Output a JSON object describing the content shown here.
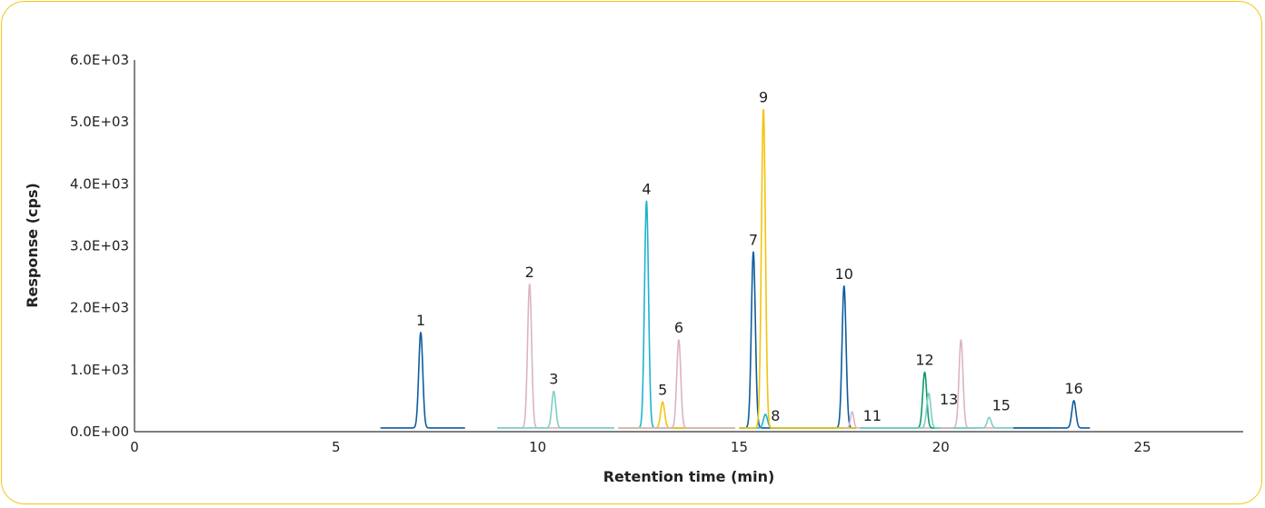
{
  "chart_data": {
    "type": "line",
    "xlabel": "Retention time (min)",
    "ylabel": "Response (cps)",
    "xlim": [
      0,
      27.5
    ],
    "ylim": [
      0,
      6000
    ],
    "x_ticks": [
      "0",
      "5",
      "10",
      "15",
      "20",
      "25"
    ],
    "x_tick_values": [
      0,
      5,
      10,
      15,
      20,
      25
    ],
    "y_ticks": [
      "0.0E+00",
      "1.0E+03",
      "2.0E+03",
      "3.0E+03",
      "4.0E+03",
      "5.0E+03",
      "6.0E+03"
    ],
    "y_tick_values": [
      0,
      1000,
      2000,
      3000,
      4000,
      5000,
      6000
    ],
    "grid": false,
    "colors": {
      "blue": "#0d5c9e",
      "pink": "#dcb3c4",
      "teal": "#7ccfc4",
      "cyan": "#1fb3cc",
      "yellow": "#f2c40c",
      "green": "#0f9a6e"
    },
    "series": [
      {
        "color": "blue",
        "range": [
          6.1,
          8.2
        ],
        "baseline": 60,
        "peaks": [
          {
            "label": "1",
            "x": 7.1,
            "y": 1600,
            "w": 0.05
          }
        ]
      },
      {
        "color": "pink",
        "range": [
          9.0,
          11.9
        ],
        "baseline": 60,
        "peaks": [
          {
            "label": "2",
            "x": 9.8,
            "y": 2380,
            "w": 0.05
          }
        ]
      },
      {
        "color": "teal",
        "range": [
          9.0,
          11.9
        ],
        "baseline": 60,
        "peaks": [
          {
            "label": "3",
            "x": 10.4,
            "y": 650,
            "w": 0.05
          }
        ]
      },
      {
        "color": "cyan",
        "range": [
          12.0,
          14.9
        ],
        "baseline": 60,
        "peaks": [
          {
            "label": "4",
            "x": 12.7,
            "y": 3720,
            "w": 0.05
          }
        ]
      },
      {
        "color": "yellow",
        "range": [
          12.0,
          14.9
        ],
        "baseline": 60,
        "peaks": [
          {
            "label": "5",
            "x": 13.1,
            "y": 480,
            "w": 0.05
          }
        ]
      },
      {
        "color": "pink",
        "range": [
          12.0,
          14.9
        ],
        "baseline": 60,
        "peaks": [
          {
            "label": "6",
            "x": 13.5,
            "y": 1480,
            "w": 0.05
          }
        ]
      },
      {
        "color": "blue",
        "range": [
          15.0,
          17.9
        ],
        "baseline": 60,
        "peaks": [
          {
            "label": "7",
            "x": 15.35,
            "y": 2900,
            "w": 0.05
          },
          {
            "label": "10",
            "x": 17.6,
            "y": 2350,
            "w": 0.05
          }
        ]
      },
      {
        "color": "cyan",
        "range": [
          15.0,
          17.9
        ],
        "baseline": 60,
        "peaks": [
          {
            "label": "8",
            "x": 15.65,
            "y": 280,
            "w": 0.05
          }
        ]
      },
      {
        "color": "yellow",
        "range": [
          15.0,
          17.9
        ],
        "baseline": 60,
        "peaks": [
          {
            "label": "9",
            "x": 15.6,
            "y": 5200,
            "w": 0.05
          }
        ]
      },
      {
        "color": "pink",
        "range": [
          17.6,
          20.2
        ],
        "baseline": 60,
        "peaks": [
          {
            "label": "11",
            "x": 17.8,
            "y": 320,
            "w": 0.04
          }
        ]
      },
      {
        "color": "green",
        "range": [
          18.0,
          20.9
        ],
        "baseline": 60,
        "peaks": [
          {
            "label": "12",
            "x": 19.6,
            "y": 960,
            "w": 0.05
          }
        ]
      },
      {
        "color": "teal",
        "range": [
          18.0,
          20.9
        ],
        "baseline": 60,
        "peaks": [
          {
            "label": "13",
            "x": 19.7,
            "y": 620,
            "w": 0.05
          }
        ]
      },
      {
        "color": "pink",
        "range": [
          20.0,
          21.9
        ],
        "baseline": 60,
        "peaks": [
          {
            "label": "",
            "x": 20.5,
            "y": 1480,
            "w": 0.05
          }
        ]
      },
      {
        "color": "teal",
        "range": [
          20.3,
          22.7
        ],
        "baseline": 60,
        "peaks": [
          {
            "label": "15",
            "x": 21.2,
            "y": 230,
            "w": 0.05
          }
        ]
      },
      {
        "color": "blue",
        "range": [
          21.8,
          23.7
        ],
        "baseline": 60,
        "peaks": [
          {
            "label": "16",
            "x": 23.3,
            "y": 500,
            "w": 0.05
          }
        ]
      }
    ],
    "peak_labels": [
      {
        "text": "1",
        "x": 7.1,
        "y": 1600
      },
      {
        "text": "2",
        "x": 9.8,
        "y": 2380
      },
      {
        "text": "3",
        "x": 10.4,
        "y": 650
      },
      {
        "text": "4",
        "x": 12.7,
        "y": 3720
      },
      {
        "text": "5",
        "x": 13.1,
        "y": 480
      },
      {
        "text": "6",
        "x": 13.5,
        "y": 1480
      },
      {
        "text": "7",
        "x": 15.35,
        "y": 2900
      },
      {
        "text": "8",
        "x": 15.9,
        "y": 60
      },
      {
        "text": "9",
        "x": 15.6,
        "y": 5200
      },
      {
        "text": "10",
        "x": 17.6,
        "y": 2350
      },
      {
        "text": "11",
        "x": 18.3,
        "y": 60
      },
      {
        "text": "12",
        "x": 19.6,
        "y": 960
      },
      {
        "text": "13",
        "x": 20.2,
        "y": 320
      },
      {
        "text": "15",
        "x": 21.5,
        "y": 230
      },
      {
        "text": "16",
        "x": 23.3,
        "y": 500
      }
    ]
  }
}
